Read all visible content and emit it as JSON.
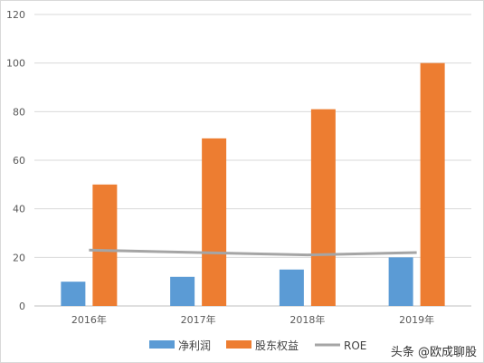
{
  "chart_data": {
    "type": "bar",
    "categories": [
      "2016年",
      "2017年",
      "2018年",
      "2019年"
    ],
    "series": [
      {
        "name": "净利润",
        "kind": "bar",
        "color": "#5b9bd5",
        "values": [
          10,
          12,
          15,
          20
        ]
      },
      {
        "name": "股东权益",
        "kind": "bar",
        "color": "#ed7d31",
        "values": [
          50,
          69,
          81,
          100
        ]
      },
      {
        "name": "ROE",
        "kind": "line",
        "color": "#a5a5a5",
        "values": [
          23,
          22,
          21,
          22
        ]
      }
    ],
    "yticks": [
      "0",
      "20",
      "40",
      "60",
      "80",
      "100",
      "120"
    ],
    "ylim": [
      0,
      120
    ],
    "grid": true,
    "legend_position": "bottom"
  },
  "watermark": "头条 @欧成聊股"
}
